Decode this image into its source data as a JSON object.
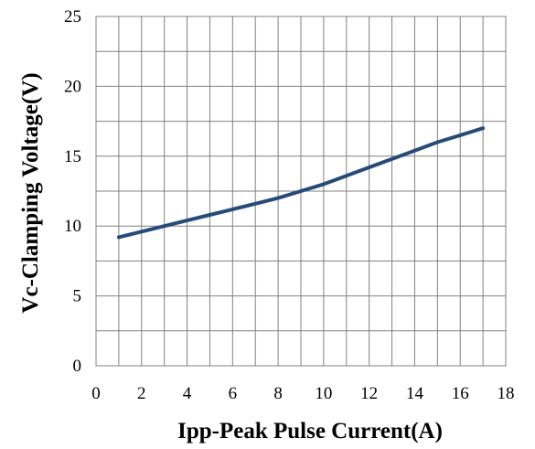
{
  "chart_data": {
    "type": "line",
    "title": "",
    "xlabel": "Ipp-Peak Pulse Current(A)",
    "ylabel": "Vc-Clamping Voltage(V)",
    "xlim": [
      0,
      18
    ],
    "ylim": [
      0,
      25
    ],
    "x_ticks": [
      0,
      2,
      4,
      6,
      8,
      10,
      12,
      14,
      16,
      18
    ],
    "y_ticks": [
      0,
      5,
      10,
      15,
      20,
      25
    ],
    "grid": true,
    "minor_grid": true,
    "legend": "none",
    "series": [
      {
        "color": "#264b78",
        "x": [
          1,
          2,
          3,
          4,
          5,
          6,
          7,
          8,
          9,
          10,
          11,
          12,
          13,
          14,
          15,
          16,
          17
        ],
        "y": [
          9.2,
          9.6,
          10.0,
          10.4,
          10.8,
          11.2,
          11.6,
          12.0,
          12.5,
          13.0,
          13.6,
          14.2,
          14.8,
          15.4,
          16.0,
          16.5,
          17.0
        ]
      }
    ]
  }
}
